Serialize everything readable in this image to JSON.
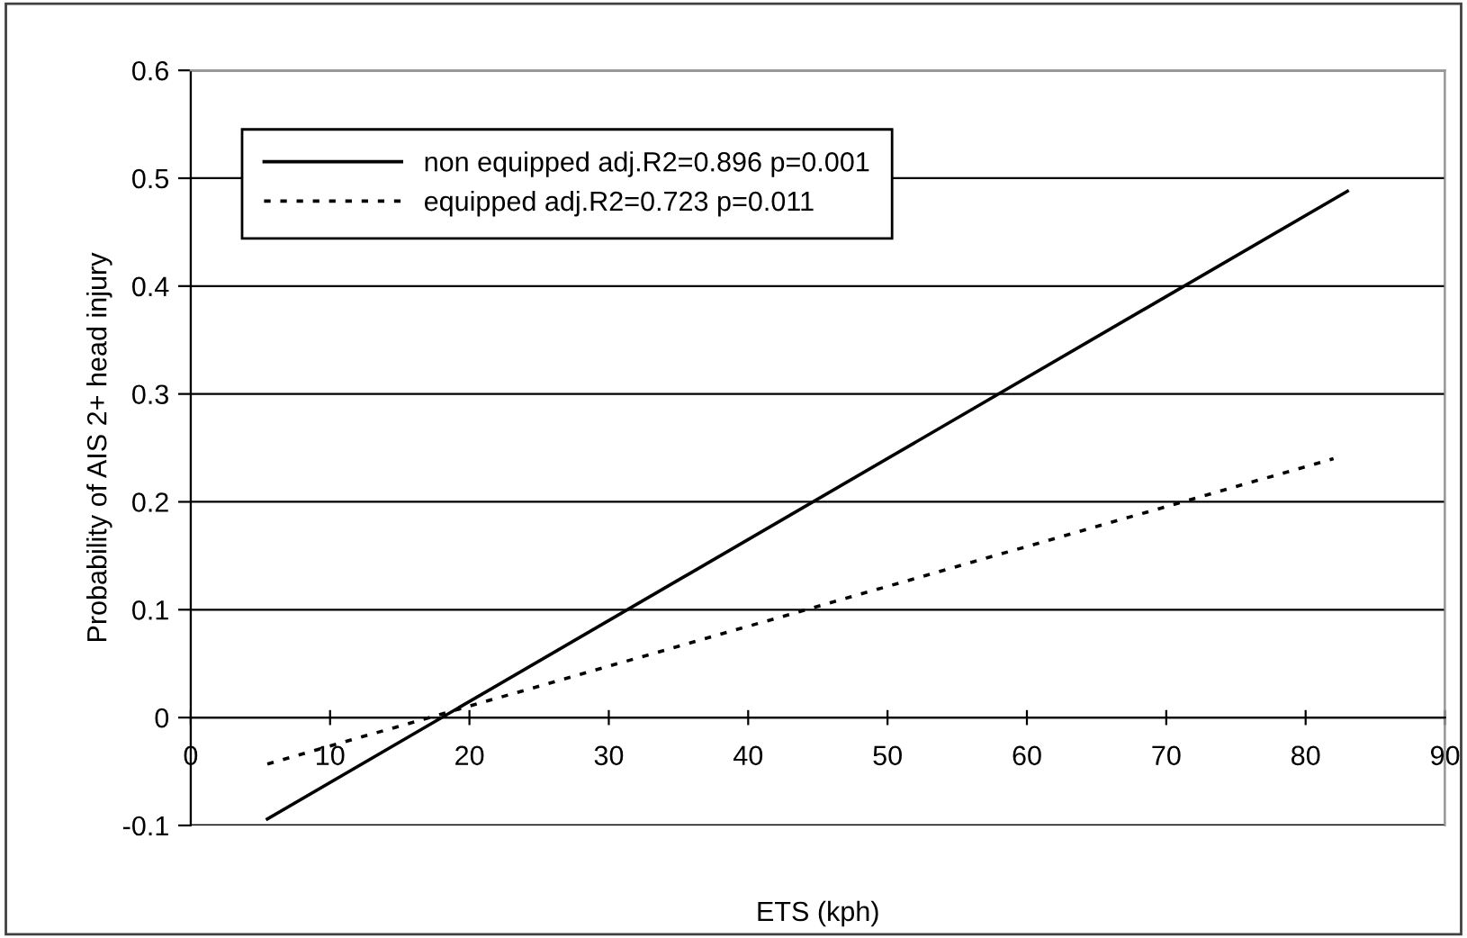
{
  "chart_data": {
    "type": "line",
    "xlabel": "ETS (kph)",
    "ylabel": "Probability of AIS 2+ head injury",
    "series": [
      {
        "name": "non equipped adj.R2=0.896 p=0.001",
        "color": "#000000",
        "line_style": "solid",
        "x": [
          5.5,
          83
        ],
        "values": [
          -0.094,
          0.488
        ]
      },
      {
        "name": "equipped adj.R2=0.723 p=0.011",
        "color": "#000000",
        "line_style": "dotted",
        "x": [
          5.5,
          82
        ],
        "values": [
          -0.043,
          0.24
        ]
      }
    ],
    "xlim": [
      0,
      90
    ],
    "xticks": [
      0,
      10,
      20,
      30,
      40,
      50,
      60,
      70,
      80,
      90
    ],
    "ylim": [
      -0.1,
      0.6
    ],
    "yticks": [
      -0.1,
      0,
      0.1,
      0.2,
      0.3,
      0.4,
      0.5,
      0.6
    ],
    "grid": "y",
    "legend": "top left",
    "marker": "none"
  }
}
